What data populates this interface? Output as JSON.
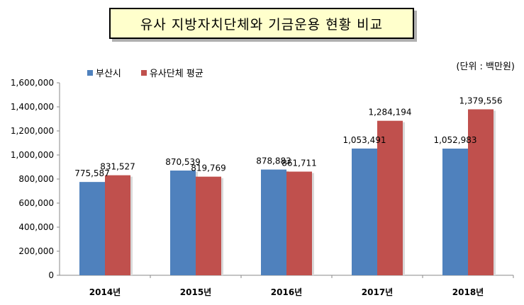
{
  "chart_data": {
    "type": "bar",
    "title": "유사 지방자치단체와 기금운용 현황 비교",
    "unit": "(단위 : 백만원)",
    "categories": [
      "2014년",
      "2015년",
      "2016년",
      "2017년",
      "2018년"
    ],
    "series": [
      {
        "name": "부산시",
        "color": "#4f81bd",
        "values": [
          775587,
          870539,
          878883,
          1053491,
          1052983
        ]
      },
      {
        "name": "유사단체 평균",
        "color": "#c0504d",
        "values": [
          831527,
          819769,
          861711,
          1284194,
          1379556
        ]
      }
    ],
    "ylim": [
      0,
      1600000
    ],
    "yticks": [
      "0",
      "200,000",
      "400,000",
      "600,000",
      "800,000",
      "1,000,000",
      "1,200,000",
      "1,400,000",
      "1,600,000"
    ],
    "data_labels": [
      [
        "775,587",
        "870,539",
        "878,883",
        "1,053,491",
        "1,052,983"
      ],
      [
        "831,527",
        "819,769",
        "861,711",
        "1,284,194",
        "1,379,556"
      ]
    ],
    "legend_position": "top-left",
    "grid": false
  }
}
